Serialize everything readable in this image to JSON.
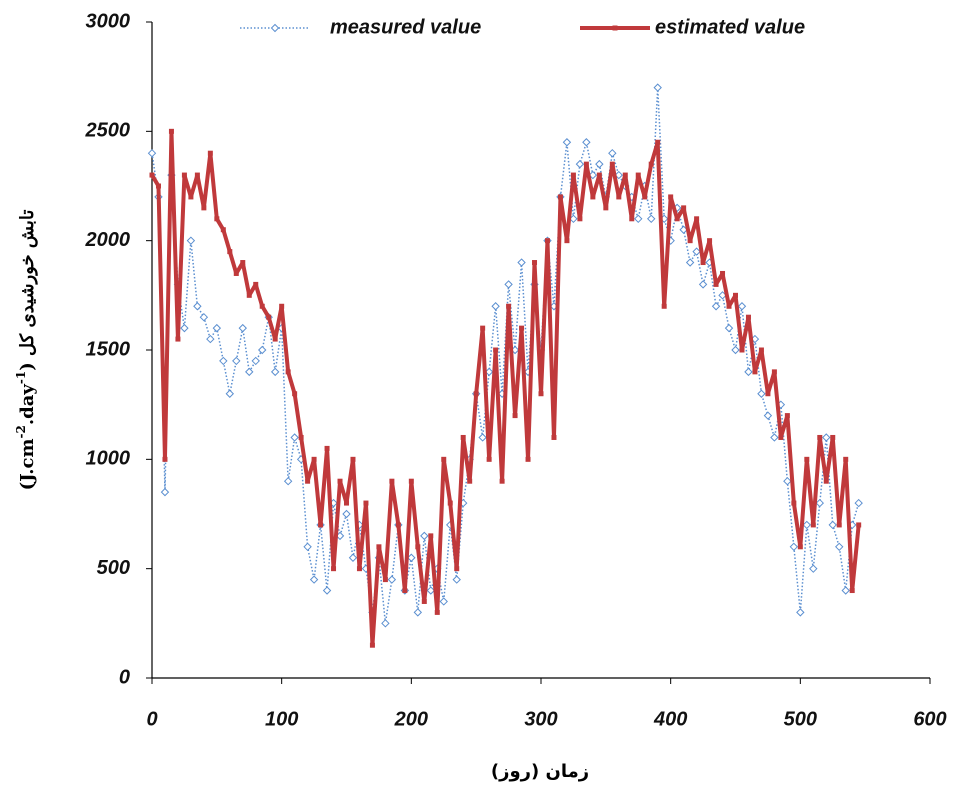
{
  "chart_data": {
    "type": "line",
    "xlabel": "زمان (روز)",
    "ylabel_parts": [
      "(J.cm",
      "-2",
      ".day",
      "-1",
      ")",
      " تابش خورشیدی کل"
    ],
    "x": [
      0,
      5,
      10,
      15,
      20,
      25,
      30,
      35,
      40,
      45,
      50,
      55,
      60,
      65,
      70,
      75,
      80,
      85,
      90,
      95,
      100,
      105,
      110,
      115,
      120,
      125,
      130,
      135,
      140,
      145,
      150,
      155,
      160,
      165,
      170,
      175,
      180,
      185,
      190,
      195,
      200,
      205,
      210,
      215,
      220,
      225,
      230,
      235,
      240,
      245,
      250,
      255,
      260,
      265,
      270,
      275,
      280,
      285,
      290,
      295,
      300,
      305,
      310,
      315,
      320,
      325,
      330,
      335,
      340,
      345,
      350,
      355,
      360,
      365,
      370,
      375,
      380,
      385,
      390,
      395,
      400,
      405,
      410,
      415,
      420,
      425,
      430,
      435,
      440,
      445,
      450,
      455,
      460,
      465,
      470,
      475,
      480,
      485,
      490,
      495,
      500,
      505,
      510,
      515,
      520,
      525,
      530,
      535,
      540,
      545
    ],
    "series": [
      {
        "name": "measured value",
        "color": "#5b8fd0",
        "style": "dotted",
        "marker": "diamond",
        "values": [
          2400,
          2200,
          850,
          2300,
          1800,
          1600,
          2000,
          1700,
          1650,
          1550,
          1600,
          1450,
          1300,
          1450,
          1600,
          1400,
          1450,
          1500,
          1650,
          1400,
          1600,
          900,
          1100,
          1000,
          600,
          450,
          700,
          400,
          800,
          650,
          750,
          550,
          700,
          500,
          300,
          550,
          250,
          450,
          700,
          400,
          550,
          300,
          650,
          400,
          500,
          350,
          700,
          450,
          800,
          1000,
          1300,
          1100,
          1400,
          1700,
          1300,
          1800,
          1500,
          1900,
          1400,
          1800,
          1500,
          2000,
          1700,
          2200,
          2450,
          2100,
          2350,
          2450,
          2300,
          2350,
          2200,
          2400,
          2300,
          2250,
          2200,
          2100,
          2250,
          2100,
          2700,
          2100,
          2000,
          2150,
          2050,
          1900,
          1950,
          1800,
          1900,
          1700,
          1750,
          1600,
          1500,
          1700,
          1400,
          1550,
          1300,
          1200,
          1100,
          1250,
          900,
          600,
          300,
          700,
          500,
          800,
          1100,
          700,
          600,
          400,
          700,
          800
        ]
      },
      {
        "name": "estimated value",
        "color": "#c0393b",
        "style": "solid",
        "marker": "square",
        "values": [
          2300,
          2250,
          1000,
          2500,
          1550,
          2300,
          2200,
          2300,
          2150,
          2400,
          2100,
          2050,
          1950,
          1850,
          1900,
          1750,
          1800,
          1700,
          1650,
          1550,
          1700,
          1400,
          1300,
          1100,
          900,
          1000,
          700,
          1050,
          500,
          900,
          800,
          1000,
          500,
          800,
          150,
          600,
          450,
          900,
          700,
          400,
          900,
          600,
          350,
          650,
          300,
          1000,
          800,
          500,
          1100,
          900,
          1300,
          1600,
          1000,
          1500,
          900,
          1700,
          1200,
          1600,
          1000,
          1900,
          1300,
          2000,
          1100,
          2200,
          2000,
          2300,
          2100,
          2350,
          2200,
          2300,
          2150,
          2350,
          2200,
          2300,
          2100,
          2300,
          2200,
          2350,
          2450,
          1700,
          2200,
          2100,
          2150,
          2000,
          2100,
          1900,
          2000,
          1800,
          1850,
          1700,
          1750,
          1500,
          1650,
          1400,
          1500,
          1300,
          1400,
          1100,
          1200,
          800,
          600,
          1000,
          700,
          1100,
          900,
          1100,
          700,
          1000,
          400,
          700
        ]
      }
    ],
    "xlim": [
      0,
      600
    ],
    "xticks": [
      0,
      100,
      200,
      300,
      400,
      500,
      600
    ],
    "ylim": [
      0,
      3000
    ],
    "yticks": [
      0,
      500,
      1000,
      1500,
      2000,
      2500,
      3000
    ],
    "grid": false
  }
}
